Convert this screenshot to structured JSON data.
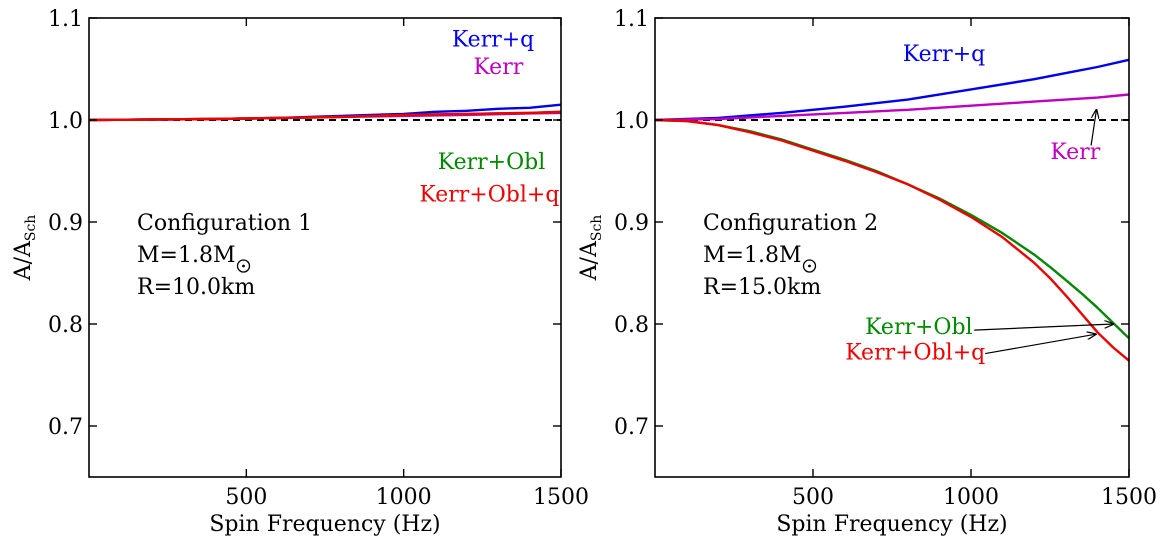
{
  "chart_data": [
    {
      "type": "line",
      "xlabel": "Spin Frequency (Hz)",
      "ylabel": "A/A",
      "ylabel_sub": "Sch",
      "xlim": [
        0,
        1500
      ],
      "ylim": [
        0.65,
        1.1
      ],
      "xticks": [
        500,
        1000,
        1500
      ],
      "yticks": [
        0.7,
        0.8,
        0.9,
        1.0,
        1.1
      ],
      "ytick_labels": [
        "0.7",
        "0.8",
        "0.9",
        "1.0",
        "1.1"
      ],
      "config_lines": [
        "Configuration 1",
        "M=1.8M",
        "R=10.0km"
      ],
      "reference_line": 1.0,
      "series": [
        {
          "name": "Kerr+q",
          "color": "#0000ee",
          "x": [
            0,
            200,
            400,
            600,
            800,
            1000,
            1100,
            1200,
            1300,
            1400,
            1500
          ],
          "y": [
            1.0,
            1.0005,
            1.001,
            1.002,
            1.004,
            1.006,
            1.008,
            1.009,
            1.011,
            1.012,
            1.015
          ]
        },
        {
          "name": "Kerr",
          "color": "#c000c0",
          "x": [
            0,
            200,
            400,
            600,
            800,
            1000,
            1200,
            1400,
            1500
          ],
          "y": [
            1.0,
            1.0005,
            1.001,
            1.002,
            1.003,
            1.004,
            1.005,
            1.0065,
            1.007
          ]
        },
        {
          "name": "Kerr+Obl",
          "color": "#008800",
          "x": [
            0,
            200,
            400,
            600,
            800,
            1000,
            1200,
            1400,
            1500
          ],
          "y": [
            1.0,
            1.0005,
            1.001,
            1.002,
            1.003,
            1.005,
            1.006,
            1.007,
            1.008
          ]
        },
        {
          "name": "Kerr+Obl+q",
          "color": "#ee0000",
          "x": [
            0,
            200,
            400,
            600,
            800,
            1000,
            1200,
            1400,
            1500
          ],
          "y": [
            1.0,
            1.0005,
            1.001,
            1.002,
            1.003,
            1.005,
            1.006,
            1.007,
            1.008
          ]
        }
      ],
      "labels": [
        {
          "text": "Kerr+q",
          "color": "#0000ee",
          "at": [
            1415,
            1.072
          ],
          "anchor": "end"
        },
        {
          "text": "Kerr",
          "color": "#c000c0",
          "at": [
            1380,
            1.045
          ],
          "anchor": "end"
        },
        {
          "text": "Kerr+Obl",
          "color": "#008800",
          "at": [
            1450,
            0.952
          ],
          "anchor": "end"
        },
        {
          "text": "Kerr+Obl+q",
          "color": "#ee0000",
          "at": [
            1495,
            0.92
          ],
          "anchor": "end"
        }
      ],
      "arrows": []
    },
    {
      "type": "line",
      "xlabel": "Spin Frequency (Hz)",
      "ylabel": "A/A",
      "ylabel_sub": "Sch",
      "xlim": [
        0,
        1500
      ],
      "ylim": [
        0.65,
        1.1
      ],
      "xticks": [
        500,
        1000,
        1500
      ],
      "yticks": [
        0.7,
        0.8,
        0.9,
        1.0,
        1.1
      ],
      "ytick_labels": [
        "0.7",
        "0.8",
        "0.9",
        "1.0",
        "1.1"
      ],
      "config_lines": [
        "Configuration 2",
        "M=1.8M",
        "R=15.0km"
      ],
      "reference_line": 1.0,
      "series": [
        {
          "name": "Kerr+q",
          "color": "#0000ee",
          "x": [
            0,
            200,
            400,
            600,
            800,
            1000,
            1200,
            1300,
            1400,
            1500
          ],
          "y": [
            1.0,
            1.002,
            1.007,
            1.013,
            1.02,
            1.03,
            1.04,
            1.046,
            1.052,
            1.059
          ]
        },
        {
          "name": "Kerr",
          "color": "#c000c0",
          "x": [
            0,
            200,
            400,
            600,
            800,
            1000,
            1200,
            1400,
            1500
          ],
          "y": [
            1.0,
            1.001,
            1.004,
            1.007,
            1.01,
            1.014,
            1.018,
            1.022,
            1.025
          ]
        },
        {
          "name": "Kerr+Obl",
          "color": "#008800",
          "x": [
            0,
            100,
            200,
            300,
            400,
            500,
            600,
            700,
            800,
            900,
            1000,
            1100,
            1200,
            1250,
            1300,
            1350,
            1400,
            1450,
            1500
          ],
          "y": [
            1.0,
            0.999,
            0.995,
            0.989,
            0.981,
            0.971,
            0.961,
            0.95,
            0.937,
            0.923,
            0.907,
            0.889,
            0.868,
            0.856,
            0.843,
            0.83,
            0.816,
            0.801,
            0.786
          ]
        },
        {
          "name": "Kerr+Obl+q",
          "color": "#ee0000",
          "x": [
            0,
            100,
            200,
            300,
            400,
            500,
            600,
            700,
            800,
            900,
            1000,
            1100,
            1200,
            1250,
            1300,
            1350,
            1400,
            1450,
            1500
          ],
          "y": [
            1.0,
            0.999,
            0.995,
            0.988,
            0.98,
            0.97,
            0.96,
            0.949,
            0.937,
            0.922,
            0.905,
            0.885,
            0.86,
            0.845,
            0.828,
            0.81,
            0.792,
            0.777,
            0.764
          ]
        }
      ],
      "labels": [
        {
          "text": "Kerr+q",
          "color": "#0000ee",
          "at": [
            1045,
            1.058
          ],
          "anchor": "end"
        },
        {
          "text": "Kerr",
          "color": "#c000c0",
          "at": [
            1330,
            0.962
          ],
          "anchor": "middle"
        },
        {
          "text": "Kerr+Obl",
          "color": "#008800",
          "at": [
            1005,
            0.79
          ],
          "anchor": "end"
        },
        {
          "text": "Kerr+Obl+q",
          "color": "#ee0000",
          "at": [
            1045,
            0.765
          ],
          "anchor": "end"
        }
      ],
      "arrows": [
        {
          "from": [
            1380,
            0.975
          ],
          "to": [
            1397,
            1.01
          ],
          "color": "#000000"
        },
        {
          "from": [
            1010,
            0.794
          ],
          "to": [
            1450,
            0.8
          ],
          "color": "#000000"
        },
        {
          "from": [
            1045,
            0.771
          ],
          "to": [
            1395,
            0.79
          ],
          "color": "#000000"
        }
      ]
    }
  ]
}
